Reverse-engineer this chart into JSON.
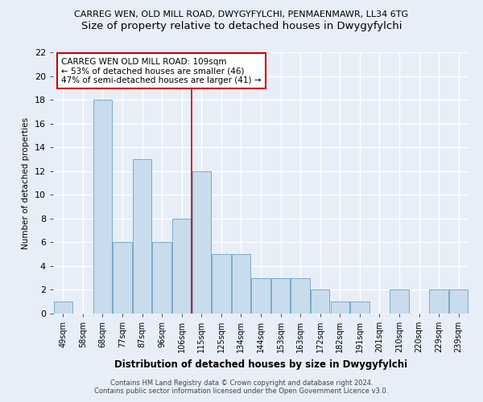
{
  "title1": "CARREG WEN, OLD MILL ROAD, DWYGYFYLCHI, PENMAENMAWR, LL34 6TG",
  "title2": "Size of property relative to detached houses in Dwygyfylchi",
  "xlabel": "Distribution of detached houses by size in Dwygyfylchi",
  "ylabel": "Number of detached properties",
  "categories": [
    "49sqm",
    "58sqm",
    "68sqm",
    "77sqm",
    "87sqm",
    "96sqm",
    "106sqm",
    "115sqm",
    "125sqm",
    "134sqm",
    "144sqm",
    "153sqm",
    "163sqm",
    "172sqm",
    "182sqm",
    "191sqm",
    "201sqm",
    "210sqm",
    "220sqm",
    "229sqm",
    "239sqm"
  ],
  "values": [
    1,
    0,
    18,
    6,
    13,
    6,
    8,
    12,
    5,
    5,
    3,
    3,
    3,
    2,
    1,
    1,
    0,
    2,
    0,
    2,
    2
  ],
  "bar_color": "#c8dced",
  "bar_edge_color": "#7aaac8",
  "vline_x": 6.5,
  "vline_color": "#cc0000",
  "annotation_text": "CARREG WEN OLD MILL ROAD: 109sqm\n← 53% of detached houses are smaller (46)\n47% of semi-detached houses are larger (41) →",
  "annotation_box_color": "#ffffff",
  "annotation_box_edge": "#cc0000",
  "ylim": [
    0,
    22
  ],
  "yticks": [
    0,
    2,
    4,
    6,
    8,
    10,
    12,
    14,
    16,
    18,
    20,
    22
  ],
  "footer1": "Contains HM Land Registry data © Crown copyright and database right 2024.",
  "footer2": "Contains public sector information licensed under the Open Government Licence v3.0.",
  "bg_color": "#e8eef8",
  "grid_color": "#ffffff",
  "title1_fontsize": 8.0,
  "title2_fontsize": 9.5
}
